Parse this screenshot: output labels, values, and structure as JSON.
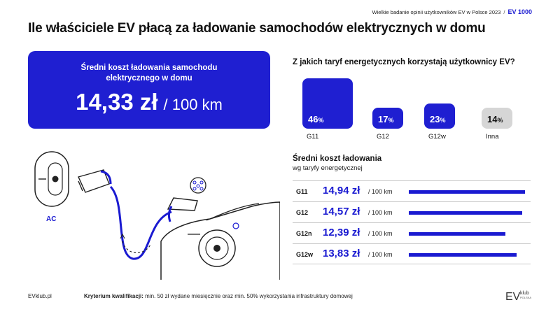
{
  "header": {
    "survey_note": "Wielkie badanie opinii użytkowników EV w Polsce 2023",
    "separator": "/",
    "brand": "EV 1000"
  },
  "title": "Ile właściciele EV płacą za ładowanie samochodów elektrycznych w domu",
  "cost_box": {
    "label": "Średni koszt ładowania samochodu elektrycznego w domu",
    "value": "14,33 zł",
    "unit": "/ 100 km",
    "bg_color": "#1f1fd1"
  },
  "illustration": {
    "ac_label": "AC",
    "icons": [
      "wallbox-charger-icon",
      "charging-plug-icon",
      "charging-port-icon",
      "electric-car-icon"
    ]
  },
  "chart_data": [
    {
      "type": "bar",
      "title": "Z jakich taryf energetycznych korzystają użytkownicy EV?",
      "categories": [
        "G11",
        "G12",
        "G12w",
        "Inna"
      ],
      "values": [
        46,
        17,
        23,
        14
      ],
      "value_labels": [
        "46",
        "17",
        "23",
        "14"
      ],
      "value_suffix": "%",
      "ylim": [
        0,
        46
      ],
      "colors": [
        "#1f1fd1",
        "#1f1fd1",
        "#1f1fd1",
        "#d6d6d6"
      ]
    },
    {
      "type": "bar",
      "orientation": "horizontal",
      "title": "Średni koszt ładowania",
      "subtitle": "wg taryfy energetycznej",
      "categories": [
        "G11",
        "G12",
        "G12n",
        "G12w"
      ],
      "values": [
        14.94,
        14.57,
        12.39,
        13.83
      ],
      "value_labels": [
        "14,94 zł",
        "14,57 zł",
        "12,39 zł",
        "13,83 zł"
      ],
      "unit": "/ 100 km",
      "xlim": [
        0,
        14.94
      ],
      "color": "#1a1ad1"
    }
  ],
  "footer": {
    "site": "EVklub.pl",
    "criterion_label": "Kryterium kwalifikacji:",
    "criterion_text": "min. 50 zł wydane miesięcznie oraz min. 50% wykorzystania infrastruktury domowej",
    "logo_text": "EV",
    "logo_sub1": "klub",
    "logo_sub2": "POLSKA"
  }
}
